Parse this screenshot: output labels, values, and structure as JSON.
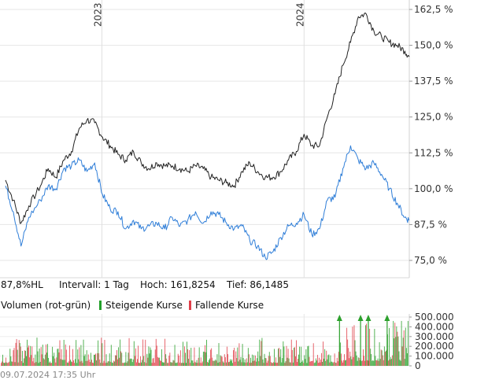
{
  "chart_data": [
    {
      "type": "line",
      "ylim": [
        70,
        165
      ],
      "yticks": [
        "162,5 %",
        "150,0 %",
        "137,5 %",
        "125,0 %",
        "112,5 %",
        "100,0 %",
        "87,5 %",
        "75,0 %"
      ],
      "ytick_values": [
        162.5,
        150.0,
        137.5,
        125.0,
        112.5,
        100.0,
        87.5,
        75.0
      ],
      "year_labels": [
        "2023",
        "2024"
      ],
      "grid": true,
      "series": [
        {
          "color": "#222222",
          "x": [
            "2022-07-11",
            "2022-07-25",
            "2022-08-08",
            "2022-08-22",
            "2022-09-12",
            "2022-09-26",
            "2022-10-10",
            "2022-10-24",
            "2022-11-07",
            "2022-11-21",
            "2022-12-05",
            "2022-12-19",
            "2023-01-02",
            "2023-01-16",
            "2023-01-30",
            "2023-02-13",
            "2023-02-27",
            "2023-03-13",
            "2023-03-27",
            "2023-04-10",
            "2023-04-24",
            "2023-05-08",
            "2023-05-22",
            "2023-06-05",
            "2023-06-19",
            "2023-07-03",
            "2023-07-17",
            "2023-07-31",
            "2023-08-14",
            "2023-08-28",
            "2023-09-11",
            "2023-09-25",
            "2023-10-09",
            "2023-10-23",
            "2023-11-06",
            "2023-11-20",
            "2023-12-04",
            "2023-12-18",
            "2024-01-01",
            "2024-01-15",
            "2024-01-29",
            "2024-02-12",
            "2024-02-26",
            "2024-03-11",
            "2024-03-25",
            "2024-04-08",
            "2024-04-22",
            "2024-05-06",
            "2024-05-20",
            "2024-06-03",
            "2024-06-17",
            "2024-07-01",
            "2024-07-09"
          ],
          "values": [
            103,
            96,
            88,
            94,
            101,
            107,
            104,
            110,
            113,
            121,
            124,
            123,
            118,
            115,
            112,
            110,
            113,
            109,
            107,
            109,
            108,
            108,
            107,
            106,
            108,
            107,
            104,
            103,
            102,
            101,
            106,
            109,
            106,
            104,
            104,
            106,
            110,
            113,
            119,
            115,
            115,
            125,
            133,
            143,
            151,
            160,
            161,
            155,
            153,
            151,
            150,
            148,
            146
          ]
        },
        {
          "color": "#2f7ed8",
          "x": [
            "2022-07-11",
            "2022-07-25",
            "2022-08-08",
            "2022-08-22",
            "2022-09-12",
            "2022-09-26",
            "2022-10-10",
            "2022-10-24",
            "2022-11-07",
            "2022-11-21",
            "2022-12-05",
            "2022-12-19",
            "2023-01-02",
            "2023-01-16",
            "2023-01-30",
            "2023-02-13",
            "2023-02-27",
            "2023-03-13",
            "2023-03-27",
            "2023-04-10",
            "2023-04-24",
            "2023-05-08",
            "2023-05-22",
            "2023-06-05",
            "2023-06-19",
            "2023-07-03",
            "2023-07-17",
            "2023-07-31",
            "2023-08-14",
            "2023-08-28",
            "2023-09-11",
            "2023-09-25",
            "2023-10-09",
            "2023-10-23",
            "2023-11-06",
            "2023-11-20",
            "2023-12-04",
            "2023-12-18",
            "2024-01-01",
            "2024-01-15",
            "2024-01-29",
            "2024-02-12",
            "2024-02-26",
            "2024-03-11",
            "2024-03-25",
            "2024-04-08",
            "2024-04-22",
            "2024-05-06",
            "2024-05-20",
            "2024-06-03",
            "2024-06-17",
            "2024-07-01",
            "2024-07-09"
          ],
          "values": [
            101,
            92,
            80,
            90,
            96,
            101,
            100,
            107,
            108,
            110,
            106,
            109,
            98,
            93,
            92,
            86,
            89,
            86,
            87,
            88,
            86,
            90,
            87,
            89,
            92,
            88,
            92,
            91,
            88,
            86,
            87,
            82,
            80,
            76,
            78,
            83,
            87,
            88,
            91,
            84,
            86,
            96,
            97,
            107,
            115,
            110,
            107,
            109,
            105,
            100,
            95,
            90,
            89
          ]
        }
      ]
    },
    {
      "type": "bar",
      "ylim": [
        0,
        500000
      ],
      "yticks": [
        "500.000",
        "400.000",
        "300.000",
        "200.000",
        "100.000",
        "0"
      ],
      "ytick_values": [
        500000,
        400000,
        300000,
        200000,
        100000,
        0
      ],
      "up_color": "#2ca02c",
      "down_color": "#e0404a",
      "peaks": [
        {
          "x": "2024-03-05",
          "value": 520000
        },
        {
          "x": "2024-04-12",
          "value": 520000
        },
        {
          "x": "2024-04-26",
          "value": 510000
        },
        {
          "x": "2024-05-30",
          "value": 510000
        }
      ]
    }
  ],
  "info": {
    "price_change": "87,8%HL",
    "interval": "Intervall: 1 Tag",
    "high": "Hoch: 161,8254",
    "low": "Tief: 86,1485"
  },
  "legend": {
    "title": "Volumen (rot-grün)",
    "up": "Steigende Kurse",
    "down": "Fallende Kurse"
  },
  "footer": {
    "timestamp": "09.07.2024 17:35 Uhr"
  }
}
